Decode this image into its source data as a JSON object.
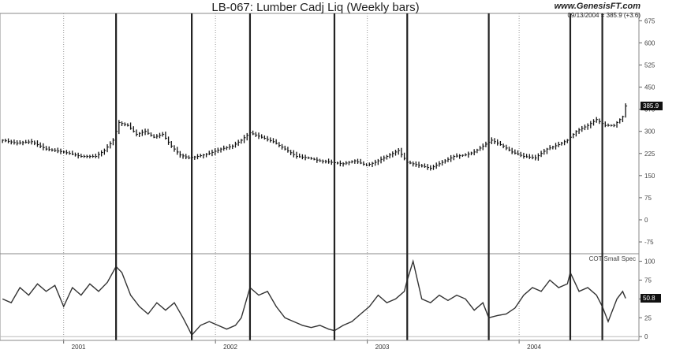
{
  "chart_data": [
    {
      "type": "line",
      "bar_style": "ohlc-weekly",
      "title": "LB-067:  Lumber Cadj Liq  (Weekly bars)",
      "source": "www.GenesisFT.com",
      "last_bar_info": "09/13/2004 = 385.9 (+3.6)",
      "last_value_label": "385.9",
      "yticks": [
        675,
        600,
        525,
        450,
        375,
        300,
        225,
        150,
        75,
        0,
        -75
      ],
      "ylim": [
        -115,
        700
      ],
      "xtick_labels": [
        "2001",
        "2002",
        "2003",
        "2004"
      ],
      "xtick_dates": [
        "2001-01-01",
        "2002-01-01",
        "2003-01-01",
        "2004-01-01"
      ],
      "xlim": [
        "2000-08-01",
        "2004-10-15"
      ],
      "grid": "dotted vertical at year starts",
      "marker_dates": [
        "2001-05-07",
        "2001-11-05",
        "2002-03-25",
        "2002-10-14",
        "2003-04-07",
        "2003-10-20",
        "2004-05-03",
        "2004-07-19"
      ],
      "series": [
        {
          "x": [
            "2000-08-07",
            "2000-09-11",
            "2000-10-16",
            "2000-11-20",
            "2001-01-01",
            "2001-02-12",
            "2001-03-19",
            "2001-04-09",
            "2001-04-30",
            "2001-05-14",
            "2001-06-04",
            "2001-06-25",
            "2001-07-16",
            "2001-08-06",
            "2001-08-27",
            "2001-09-17",
            "2001-10-08",
            "2001-10-29",
            "2001-11-19",
            "2001-12-17",
            "2002-01-14",
            "2002-02-11",
            "2002-03-04",
            "2002-03-25",
            "2002-04-22",
            "2002-05-20",
            "2002-06-17",
            "2002-07-15",
            "2002-08-12",
            "2002-09-09",
            "2002-10-07",
            "2002-11-04",
            "2002-12-02",
            "2002-12-30",
            "2003-01-20",
            "2003-02-17",
            "2003-03-17",
            "2003-04-07",
            "2003-05-05",
            "2003-06-02",
            "2003-06-30",
            "2003-07-28",
            "2003-08-25",
            "2003-09-15",
            "2003-10-06",
            "2003-10-27",
            "2003-11-24",
            "2003-12-15",
            "2004-01-12",
            "2004-02-09",
            "2004-03-08",
            "2004-04-05",
            "2004-04-26",
            "2004-05-17",
            "2004-06-14",
            "2004-07-05",
            "2004-07-26",
            "2004-08-16",
            "2004-09-06",
            "2004-09-13"
          ],
          "values": [
            270,
            260,
            265,
            240,
            230,
            215,
            215,
            235,
            270,
            330,
            320,
            290,
            300,
            280,
            290,
            250,
            220,
            210,
            215,
            225,
            240,
            250,
            270,
            295,
            280,
            265,
            240,
            215,
            210,
            200,
            195,
            190,
            200,
            185,
            195,
            215,
            235,
            195,
            185,
            175,
            195,
            215,
            220,
            230,
            250,
            270,
            250,
            230,
            215,
            210,
            240,
            255,
            270,
            300,
            320,
            340,
            320,
            320,
            350,
            385.9
          ]
        }
      ]
    },
    {
      "type": "line",
      "title": "COT Small Spec",
      "last_value_label": "50.8",
      "yticks": [
        100,
        75,
        50,
        25,
        0
      ],
      "ylim": [
        -5,
        110
      ],
      "xtick_labels": [
        "2001",
        "2002",
        "2003",
        "2004"
      ],
      "series": [
        {
          "x": [
            "2000-08-07",
            "2000-08-28",
            "2000-09-18",
            "2000-10-09",
            "2000-10-30",
            "2000-11-20",
            "2000-12-11",
            "2001-01-01",
            "2001-01-22",
            "2001-02-12",
            "2001-03-05",
            "2001-03-26",
            "2001-04-16",
            "2001-05-07",
            "2001-05-21",
            "2001-06-11",
            "2001-07-02",
            "2001-07-23",
            "2001-08-13",
            "2001-09-03",
            "2001-09-24",
            "2001-10-15",
            "2001-10-29",
            "2001-11-05",
            "2001-11-26",
            "2001-12-17",
            "2002-01-07",
            "2002-01-28",
            "2002-02-18",
            "2002-03-04",
            "2002-03-25",
            "2002-04-15",
            "2002-05-06",
            "2002-05-27",
            "2002-06-17",
            "2002-07-08",
            "2002-07-29",
            "2002-08-19",
            "2002-09-09",
            "2002-09-30",
            "2002-10-14",
            "2002-11-04",
            "2002-11-25",
            "2002-12-16",
            "2003-01-06",
            "2003-01-27",
            "2003-02-17",
            "2003-03-10",
            "2003-03-31",
            "2003-04-07",
            "2003-04-21",
            "2003-05-12",
            "2003-06-02",
            "2003-06-23",
            "2003-07-14",
            "2003-08-04",
            "2003-08-25",
            "2003-09-15",
            "2003-10-06",
            "2003-10-20",
            "2003-11-10",
            "2003-12-01",
            "2003-12-22",
            "2004-01-12",
            "2004-02-02",
            "2004-02-23",
            "2004-03-15",
            "2004-04-05",
            "2004-04-26",
            "2004-05-03",
            "2004-05-24",
            "2004-06-14",
            "2004-07-05",
            "2004-07-19",
            "2004-08-02",
            "2004-08-23",
            "2004-09-06",
            "2004-09-13"
          ],
          "values": [
            50,
            45,
            65,
            55,
            70,
            60,
            68,
            40,
            65,
            55,
            70,
            60,
            72,
            93,
            85,
            55,
            40,
            30,
            45,
            35,
            45,
            25,
            10,
            2,
            15,
            20,
            15,
            10,
            15,
            25,
            65,
            55,
            60,
            40,
            25,
            20,
            15,
            12,
            15,
            10,
            8,
            15,
            20,
            30,
            40,
            55,
            45,
            50,
            60,
            75,
            100,
            50,
            45,
            55,
            48,
            55,
            50,
            35,
            45,
            25,
            28,
            30,
            38,
            55,
            65,
            60,
            75,
            65,
            70,
            85,
            60,
            65,
            55,
            40,
            20,
            50,
            60,
            50.8
          ]
        }
      ]
    }
  ]
}
